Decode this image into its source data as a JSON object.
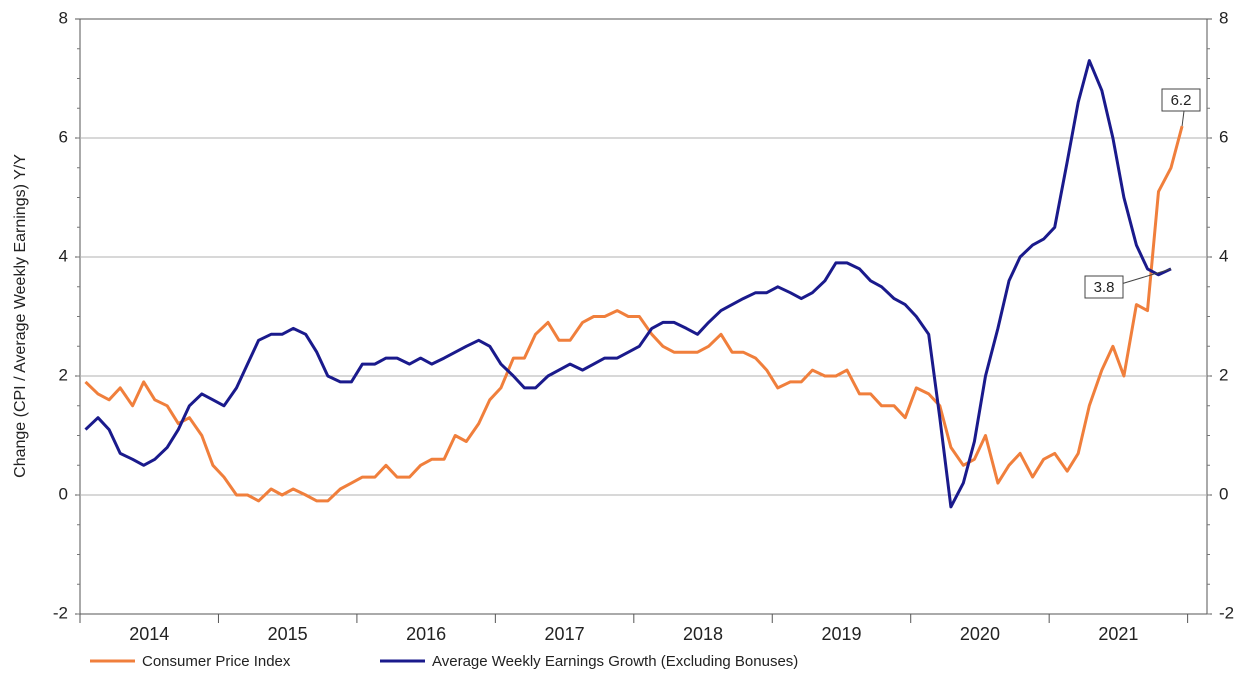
{
  "chart_data": {
    "type": "line",
    "y_label": "Change (CPI / Average Weekly Earnings) Y/Y",
    "x": [
      2014.04,
      2014.13,
      2014.21,
      2014.29,
      2014.38,
      2014.46,
      2014.54,
      2014.63,
      2014.71,
      2014.79,
      2014.88,
      2014.96,
      2015.04,
      2015.13,
      2015.21,
      2015.29,
      2015.38,
      2015.46,
      2015.54,
      2015.63,
      2015.71,
      2015.79,
      2015.88,
      2015.96,
      2016.04,
      2016.13,
      2016.21,
      2016.29,
      2016.38,
      2016.46,
      2016.54,
      2016.63,
      2016.71,
      2016.79,
      2016.88,
      2016.96,
      2017.04,
      2017.13,
      2017.21,
      2017.29,
      2017.38,
      2017.46,
      2017.54,
      2017.63,
      2017.71,
      2017.79,
      2017.88,
      2017.96,
      2018.04,
      2018.13,
      2018.21,
      2018.29,
      2018.38,
      2018.46,
      2018.54,
      2018.63,
      2018.71,
      2018.79,
      2018.88,
      2018.96,
      2019.04,
      2019.13,
      2019.21,
      2019.29,
      2019.38,
      2019.46,
      2019.54,
      2019.63,
      2019.71,
      2019.79,
      2019.88,
      2019.96,
      2020.04,
      2020.13,
      2020.21,
      2020.29,
      2020.38,
      2020.46,
      2020.54,
      2020.63,
      2020.71,
      2020.79,
      2020.88,
      2020.96,
      2021.04,
      2021.13,
      2021.21,
      2021.29,
      2021.38,
      2021.46,
      2021.54,
      2021.63,
      2021.71,
      2021.79,
      2021.88,
      2021.96
    ],
    "series": [
      {
        "name": "Consumer Price Index",
        "color": "#f07f3c",
        "values": [
          1.9,
          1.7,
          1.6,
          1.8,
          1.5,
          1.9,
          1.6,
          1.5,
          1.2,
          1.3,
          1.0,
          0.5,
          0.3,
          0.0,
          0.0,
          -0.1,
          0.1,
          0.0,
          0.1,
          0.0,
          -0.1,
          -0.1,
          0.1,
          0.2,
          0.3,
          0.3,
          0.5,
          0.3,
          0.3,
          0.5,
          0.6,
          0.6,
          1.0,
          0.9,
          1.2,
          1.6,
          1.8,
          2.3,
          2.3,
          2.7,
          2.9,
          2.6,
          2.6,
          2.9,
          3.0,
          3.0,
          3.1,
          3.0,
          3.0,
          2.7,
          2.5,
          2.4,
          2.4,
          2.4,
          2.5,
          2.7,
          2.4,
          2.4,
          2.3,
          2.1,
          1.8,
          1.9,
          1.9,
          2.1,
          2.0,
          2.0,
          2.1,
          1.7,
          1.7,
          1.5,
          1.5,
          1.3,
          1.8,
          1.7,
          1.5,
          0.8,
          0.5,
          0.6,
          1.0,
          0.2,
          0.5,
          0.7,
          0.3,
          0.6,
          0.7,
          0.4,
          0.7,
          1.5,
          2.1,
          2.5,
          2.0,
          3.2,
          3.1,
          5.1,
          5.5,
          6.2
        ]
      },
      {
        "name": "Average Weekly Earnings Growth (Excluding Bonuses)",
        "color": "#1a1a8c",
        "values": [
          1.1,
          1.3,
          1.1,
          0.7,
          0.6,
          0.5,
          0.6,
          0.8,
          1.1,
          1.5,
          1.7,
          1.6,
          1.5,
          1.8,
          2.2,
          2.6,
          2.7,
          2.7,
          2.8,
          2.7,
          2.4,
          2.0,
          1.9,
          1.9,
          2.2,
          2.2,
          2.3,
          2.3,
          2.2,
          2.3,
          2.2,
          2.3,
          2.4,
          2.5,
          2.6,
          2.5,
          2.2,
          2.0,
          1.8,
          1.8,
          2.0,
          2.1,
          2.2,
          2.1,
          2.2,
          2.3,
          2.3,
          2.4,
          2.5,
          2.8,
          2.9,
          2.9,
          2.8,
          2.7,
          2.9,
          3.1,
          3.2,
          3.3,
          3.4,
          3.4,
          3.5,
          3.4,
          3.3,
          3.4,
          3.6,
          3.9,
          3.9,
          3.8,
          3.6,
          3.5,
          3.3,
          3.2,
          3.0,
          2.7,
          1.3,
          -0.2,
          0.2,
          0.9,
          2.0,
          2.8,
          3.6,
          4.0,
          4.2,
          4.3,
          4.5,
          5.6,
          6.6,
          7.3,
          6.8,
          6.0,
          5.0,
          4.2,
          3.8,
          3.7,
          3.8,
          null
        ]
      }
    ],
    "annotations": [
      {
        "text": "6.2"
      },
      {
        "text": "3.8"
      }
    ],
    "xlim": [
      2014,
      2022.14
    ],
    "xticks": [
      2014,
      2015,
      2016,
      2017,
      2018,
      2019,
      2020,
      2021,
      2022
    ],
    "year_labels": [
      "2014",
      "2015",
      "2016",
      "2017",
      "2018",
      "2019",
      "2020",
      "2021"
    ],
    "ylim": [
      -2,
      8
    ],
    "yticks": [
      -2,
      0,
      2,
      4,
      6,
      8
    ],
    "y2lim": [
      -2,
      8
    ],
    "y2ticks": [
      -2,
      0,
      2,
      4,
      6,
      8
    ],
    "grid": true,
    "legend": "bottom"
  }
}
